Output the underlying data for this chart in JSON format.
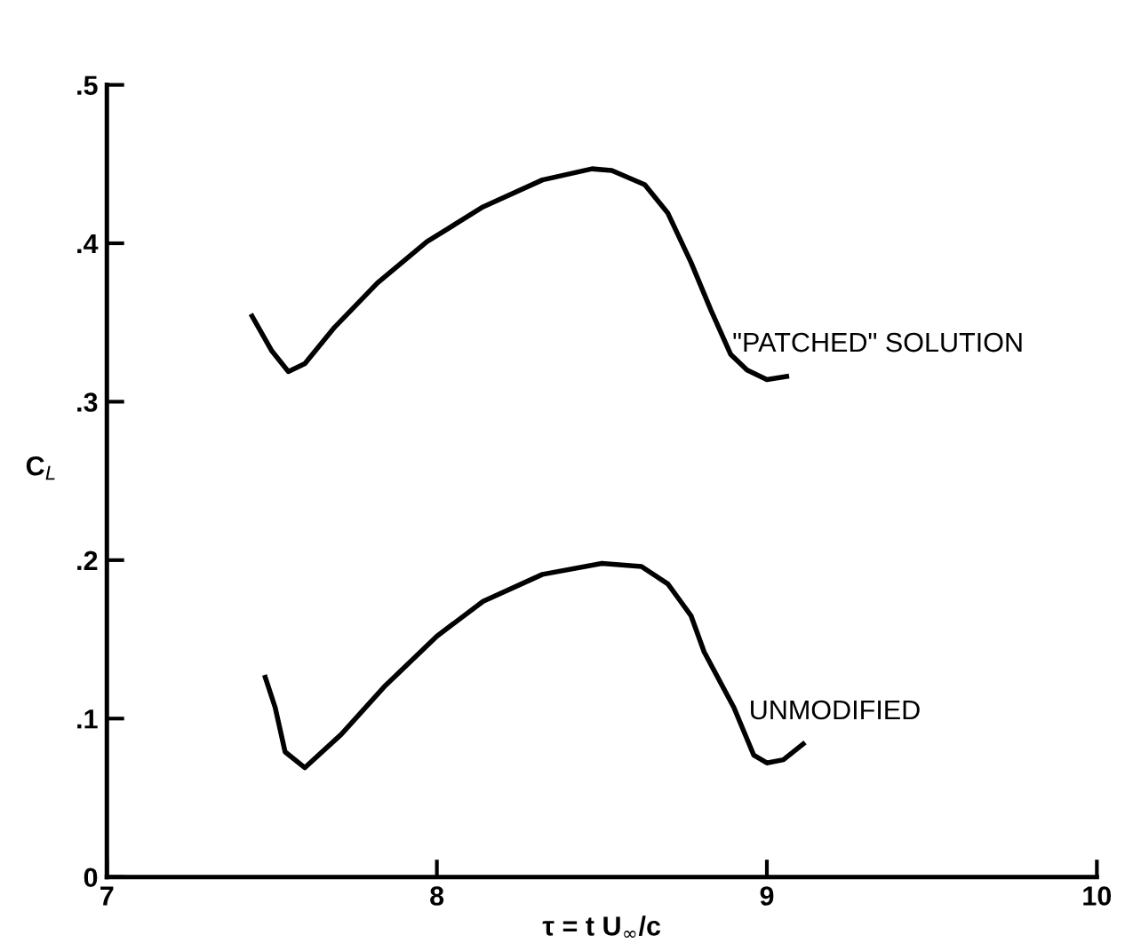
{
  "chart_data": {
    "type": "line",
    "xlabel": "τ = t U$_{∞}$/c",
    "ylabel": "C$_{L}$",
    "xlim": [
      7,
      10
    ],
    "ylim": [
      0,
      0.5
    ],
    "xticks": [
      7,
      8,
      9,
      10
    ],
    "yticks": [
      0,
      {
        "value": 0.1,
        "label": ".1"
      },
      {
        "value": 0.2,
        "label": ".2"
      },
      {
        "value": 0.3,
        "label": ".3"
      },
      {
        "value": 0.4,
        "label": ".4"
      },
      {
        "value": 0.5,
        "label": ".5"
      }
    ],
    "grid": false,
    "legend": false,
    "marker": "none",
    "line_style": "solid",
    "series": [
      {
        "name": "\"PATCHED\" SOLUTION",
        "color": "#000000",
        "x": [
          7.44,
          7.5,
          7.55,
          7.6,
          7.69,
          7.82,
          7.97,
          8.14,
          8.32,
          8.47,
          8.53,
          8.63,
          8.7,
          8.77,
          8.83,
          8.89,
          8.94,
          9.0,
          9.06
        ],
        "values": [
          0.354,
          0.332,
          0.319,
          0.324,
          0.347,
          0.375,
          0.401,
          0.423,
          0.44,
          0.447,
          0.446,
          0.437,
          0.419,
          0.388,
          0.358,
          0.33,
          0.32,
          0.314,
          0.316
        ]
      },
      {
        "name": "UNMODIFIED",
        "color": "#000000",
        "x": [
          7.48,
          7.51,
          7.54,
          7.6,
          7.71,
          7.84,
          8.0,
          8.14,
          8.32,
          8.5,
          8.62,
          8.7,
          8.77,
          8.81,
          8.9,
          8.96,
          9.0,
          9.05,
          9.11
        ],
        "values": [
          0.126,
          0.107,
          0.079,
          0.069,
          0.09,
          0.12,
          0.152,
          0.174,
          0.191,
          0.198,
          0.196,
          0.185,
          0.165,
          0.142,
          0.107,
          0.077,
          0.072,
          0.074,
          0.084
        ]
      }
    ]
  }
}
